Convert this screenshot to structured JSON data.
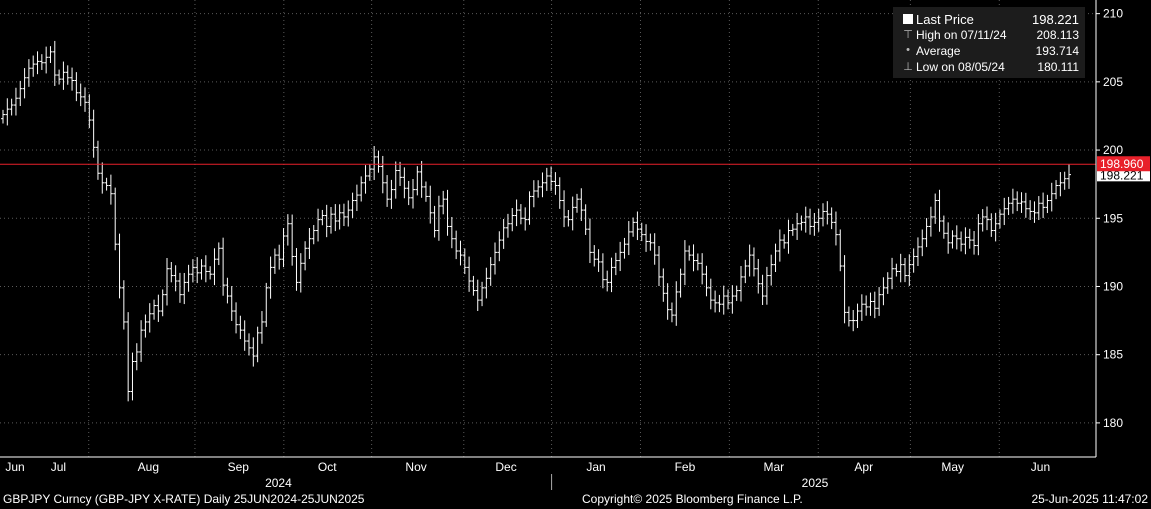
{
  "chart_data": {
    "type": "bar",
    "subtype": "ohlc",
    "y_ticks": [
      "180",
      "185",
      "190",
      "195",
      "200",
      "205",
      "210"
    ],
    "ylim": [
      177.5,
      211
    ],
    "x_month_labels": [
      "Jun",
      "Jul",
      "Aug",
      "Sep",
      "Oct",
      "Nov",
      "Dec",
      "Jan",
      "Feb",
      "Mar",
      "Apr",
      "May",
      "Jun"
    ],
    "x_year_labels": [
      "2024",
      "2025"
    ],
    "x_dates": [
      "2024-06-25",
      "2025-06-25"
    ],
    "reference_line": {
      "value": 198.96,
      "label": "198.960",
      "color": "#e8202a"
    },
    "last_price_label": "198.221",
    "daily_closes": [
      202.6,
      203.0,
      203.3,
      203.8,
      204.5,
      205.3,
      206.0,
      206.3,
      206.5,
      206.4,
      206.8,
      207.2,
      205.5,
      205.2,
      205.7,
      205.3,
      205.1,
      204.2,
      203.9,
      203.5,
      202.2,
      200.2,
      198.3,
      197.6,
      197.4,
      196.8,
      193.1,
      189.9,
      187.4,
      182.3,
      184.5,
      185.2,
      186.8,
      187.4,
      188.0,
      188.6,
      188.2,
      189.4,
      191.3,
      190.8,
      190.4,
      189.4,
      190.3,
      190.9,
      191.4,
      191.0,
      191.5,
      191.1,
      190.9,
      192.0,
      192.8,
      190.1,
      189.3,
      188.2,
      187.2,
      186.8,
      186.0,
      185.5,
      184.9,
      186.6,
      187.4,
      189.9,
      191.4,
      192.3,
      192.0,
      193.7,
      194.6,
      192.2,
      190.3,
      191.7,
      192.8,
      193.5,
      194.1,
      194.9,
      195.2,
      194.4,
      195.3,
      194.8,
      195.4,
      195.1,
      195.6,
      196.3,
      196.7,
      197.6,
      198.1,
      198.6,
      199.5,
      198.8,
      197.6,
      196.4,
      197.1,
      198.5,
      198.0,
      197.2,
      196.5,
      197.1,
      198.4,
      197.3,
      196.6,
      195.4,
      194.1,
      195.9,
      196.4,
      194.4,
      193.5,
      192.6,
      192.3,
      191.4,
      190.4,
      189.7,
      189.0,
      189.9,
      190.6,
      191.6,
      192.5,
      193.4,
      194.3,
      194.6,
      195.2,
      195.6,
      195.0,
      194.9,
      196.6,
      197.0,
      197.3,
      197.6,
      198.1,
      197.7,
      197.4,
      196.3,
      195.1,
      194.9,
      195.8,
      196.4,
      195.6,
      194.2,
      192.5,
      192.0,
      191.8,
      190.5,
      190.3,
      191.4,
      191.9,
      192.5,
      193.1,
      194.0,
      194.7,
      194.2,
      193.8,
      193.3,
      193.2,
      192.3,
      190.7,
      189.5,
      188.3,
      187.9,
      189.6,
      190.9,
      192.6,
      192.3,
      191.9,
      191.7,
      190.9,
      189.9,
      189.0,
      188.8,
      188.7,
      189.3,
      188.8,
      189.3,
      189.7,
      190.7,
      191.5,
      192.3,
      191.3,
      190.2,
      189.3,
      190.8,
      191.6,
      192.6,
      193.4,
      193.2,
      194.1,
      194.2,
      194.6,
      194.7,
      195.1,
      194.4,
      194.7,
      195.0,
      195.5,
      195.3,
      194.7,
      193.8,
      191.5,
      188.1,
      187.5,
      187.5,
      188.2,
      188.7,
      188.5,
      188.9,
      188.4,
      189.4,
      189.9,
      190.6,
      191.3,
      191.1,
      191.6,
      190.8,
      191.6,
      192.2,
      192.9,
      193.5,
      194.4,
      195.1,
      196.3,
      194.8,
      193.9,
      193.2,
      193.7,
      193.5,
      193.1,
      193.6,
      193.4,
      193.0,
      194.6,
      195.1,
      194.9,
      194.1,
      194.6,
      195.3,
      195.7,
      196.1,
      196.4,
      196.1,
      196.2,
      195.7,
      195.5,
      195.4,
      196.1,
      195.8,
      196.3,
      196.8,
      197.4,
      197.6,
      197.9,
      198.2
    ]
  },
  "legend": [
    {
      "icon": "square-icon",
      "label": "Last Price",
      "value": "198.221"
    },
    {
      "icon": "high-marker-icon",
      "label": "High on 07/11/24",
      "value": "208.113"
    },
    {
      "icon": "average-marker-icon",
      "label": "Average",
      "value": "193.714"
    },
    {
      "icon": "low-marker-icon",
      "label": "Low on 08/05/24",
      "value": "180.111"
    }
  ],
  "footer": {
    "security": "GBPJPY Curncy (GBP-JPY X-RATE)  Daily 25JUN2024-25JUN2025",
    "copyright": "Copyright© 2025 Bloomberg Finance L.P.",
    "timestamp": "25-Jun-2025 11:47:02"
  },
  "colors": {
    "background": "#000000",
    "bars": "#ffffff",
    "grid": "#5a5a5a",
    "reference": "#e8202a",
    "legend_bg": "#1c1c1c"
  }
}
